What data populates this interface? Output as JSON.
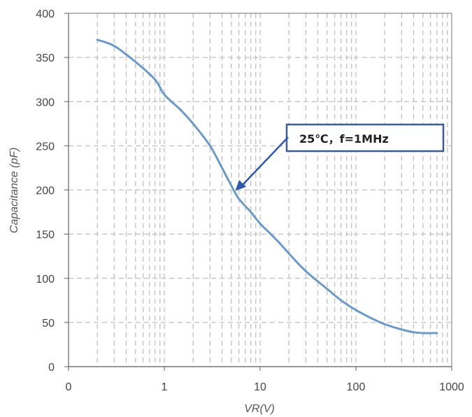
{
  "chart_data": {
    "type": "line",
    "title": "",
    "xlabel": "VR(V)",
    "ylabel": "Capacitance (pF)",
    "x_scale": "log",
    "xlim": [
      0.1,
      1000
    ],
    "ylim": [
      0,
      400
    ],
    "grid": true,
    "x_ticks": [
      {
        "value": 0.1,
        "label": "0"
      },
      {
        "value": 1,
        "label": "1"
      },
      {
        "value": 10,
        "label": "10"
      },
      {
        "value": 100,
        "label": "100"
      },
      {
        "value": 1000,
        "label": "1000"
      }
    ],
    "y_ticks": [
      {
        "value": 0,
        "label": "0"
      },
      {
        "value": 50,
        "label": "50"
      },
      {
        "value": 100,
        "label": "100"
      },
      {
        "value": 150,
        "label": "150"
      },
      {
        "value": 200,
        "label": "200"
      },
      {
        "value": 250,
        "label": "250"
      },
      {
        "value": 300,
        "label": "300"
      },
      {
        "value": 350,
        "label": "350"
      },
      {
        "value": 400,
        "label": "400"
      }
    ],
    "series": [
      {
        "color": "#6c9ac6",
        "x": [
          0.2,
          0.3,
          0.5,
          0.8,
          1,
          1.5,
          2,
          3,
          4,
          5,
          6,
          8,
          10,
          15,
          20,
          30,
          50,
          70,
          100,
          150,
          200,
          300,
          400,
          500,
          700
        ],
        "y": [
          370,
          363,
          345,
          325,
          308,
          290,
          275,
          250,
          225,
          205,
          190,
          175,
          162,
          143,
          128,
          108,
          88,
          75,
          64,
          54,
          48,
          42,
          39,
          38,
          38
        ]
      }
    ],
    "annotations": [
      {
        "text": "25℃，f=1MHz",
        "arrow_to": {
          "x": 5.5,
          "y": 199
        }
      }
    ],
    "colors": {
      "line": "#6c9ac6",
      "annotation_border": "#3e5c8f",
      "arrow": "#2f58a8",
      "grid": "#bfbfbf"
    }
  }
}
